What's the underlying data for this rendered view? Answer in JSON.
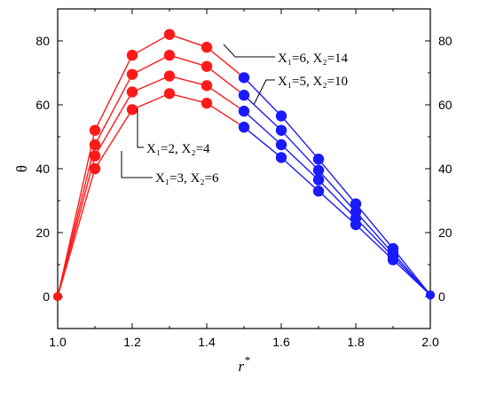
{
  "chart_data": {
    "type": "line",
    "xlabel": "r*",
    "xlabel_base": "r",
    "xlabel_sup": "*",
    "ylabel": "θ",
    "xlim": [
      1.0,
      2.0
    ],
    "ylim": [
      -10,
      90
    ],
    "x_ticks": [
      1.0,
      1.2,
      1.4,
      1.6,
      1.8,
      2.0
    ],
    "x_tick_labels": [
      "1.0",
      "1.2",
      "1.4",
      "1.6",
      "1.8",
      "2.0"
    ],
    "y_ticks": [
      0,
      20,
      40,
      60,
      80
    ],
    "y_tick_labels": [
      "0",
      "20",
      "40",
      "60",
      "80"
    ],
    "right_axis_tick_labels": true,
    "grid": false,
    "colors": {
      "inner_region": "#ff1a1a",
      "outer_region": "#1a1aff"
    },
    "color_split_x": 1.5,
    "x": [
      1.0,
      1.1,
      1.2,
      1.3,
      1.4,
      1.5,
      1.6,
      1.7,
      1.8,
      1.9,
      2.0
    ],
    "series": [
      {
        "values": [
          0,
          40,
          58.5,
          63.5,
          60.5,
          53,
          43.5,
          33,
          22.5,
          11.5,
          0.5
        ]
      },
      {
        "values": [
          0,
          44,
          64,
          69,
          66,
          58,
          47.5,
          36.5,
          24.5,
          12.5,
          0.5
        ]
      },
      {
        "values": [
          0,
          47.5,
          69.5,
          75.5,
          72,
          63,
          52,
          39.5,
          26.5,
          13.5,
          0.5
        ]
      },
      {
        "values": [
          0,
          52,
          75.5,
          82,
          78,
          68.5,
          56.5,
          43,
          29,
          15,
          0.5
        ]
      }
    ],
    "annotations": [
      {
        "text": "X₁=6, X₂=14",
        "series_index": 3,
        "point_index": 4
      },
      {
        "text": "X₁=5, X₂=10",
        "series_index": 2,
        "point_index": 5
      },
      {
        "text": "X₁=2, X₂=4",
        "series_index": 0,
        "point_index": 2
      },
      {
        "text": "X₁=3, X₂=6",
        "series_index": 1,
        "point_index": 1
      }
    ]
  }
}
